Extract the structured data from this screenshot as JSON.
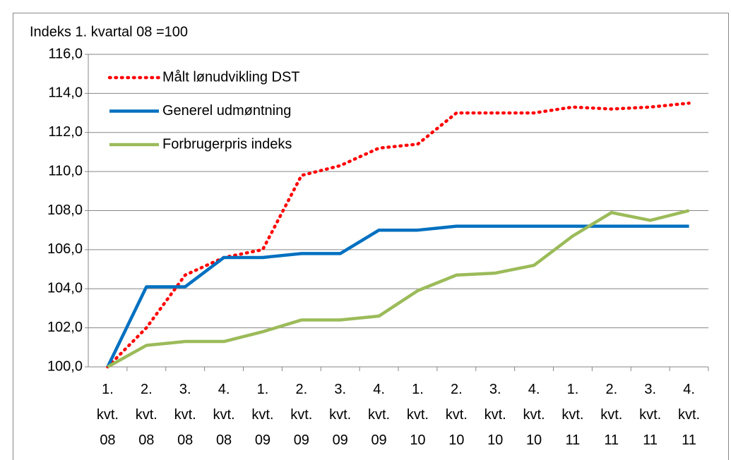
{
  "chart_data": {
    "type": "line",
    "ylabel": "Indeks 1. kvartal 08 =100",
    "categories": [
      "1. kvt. 08",
      "2. kvt. 08",
      "3. kvt. 08",
      "4. kvt. 08",
      "1. kvt. 09",
      "2. kvt. 09",
      "3. kvt. 09",
      "4. kvt. 09",
      "1. kvt. 10",
      "2. kvt. 10",
      "3. kvt. 10",
      "4. kvt. 10",
      "1. kvt. 11",
      "2. kvt. 11",
      "3. kvt. 11",
      "4. kvt. 11"
    ],
    "series": [
      {
        "name": "Målt lønudvikling DST",
        "color": "#ff0000",
        "line_style": "dotted",
        "values": [
          100.0,
          102.0,
          104.7,
          105.6,
          106.0,
          109.8,
          110.3,
          111.2,
          111.4,
          113.0,
          113.0,
          113.0,
          113.3,
          113.2,
          113.3,
          113.5
        ]
      },
      {
        "name": "Generel udmøntning",
        "color": "#0070c0",
        "line_style": "solid",
        "values": [
          100.0,
          104.1,
          104.1,
          105.6,
          105.6,
          105.8,
          105.8,
          107.0,
          107.0,
          107.2,
          107.2,
          107.2,
          107.2,
          107.2,
          107.2,
          107.2
        ]
      },
      {
        "name": "Forbrugerpris indeks",
        "color": "#9bbb59",
        "line_style": "solid",
        "values": [
          100.0,
          101.1,
          101.3,
          101.3,
          101.8,
          102.4,
          102.4,
          102.6,
          103.9,
          104.7,
          104.8,
          105.2,
          106.7,
          107.9,
          107.5,
          108.0
        ]
      }
    ],
    "ylim": [
      100,
      116
    ],
    "yticks": [
      {
        "value": 100,
        "label": "100,0"
      },
      {
        "value": 102,
        "label": "102,0"
      },
      {
        "value": 104,
        "label": "104,0"
      },
      {
        "value": 106,
        "label": "106,0"
      },
      {
        "value": 108,
        "label": "108,0"
      },
      {
        "value": 110,
        "label": "110,0"
      },
      {
        "value": 112,
        "label": "112,0"
      },
      {
        "value": 114,
        "label": "114,0"
      },
      {
        "value": 116,
        "label": "116,0"
      }
    ],
    "grid": true,
    "legend": "upper left"
  }
}
